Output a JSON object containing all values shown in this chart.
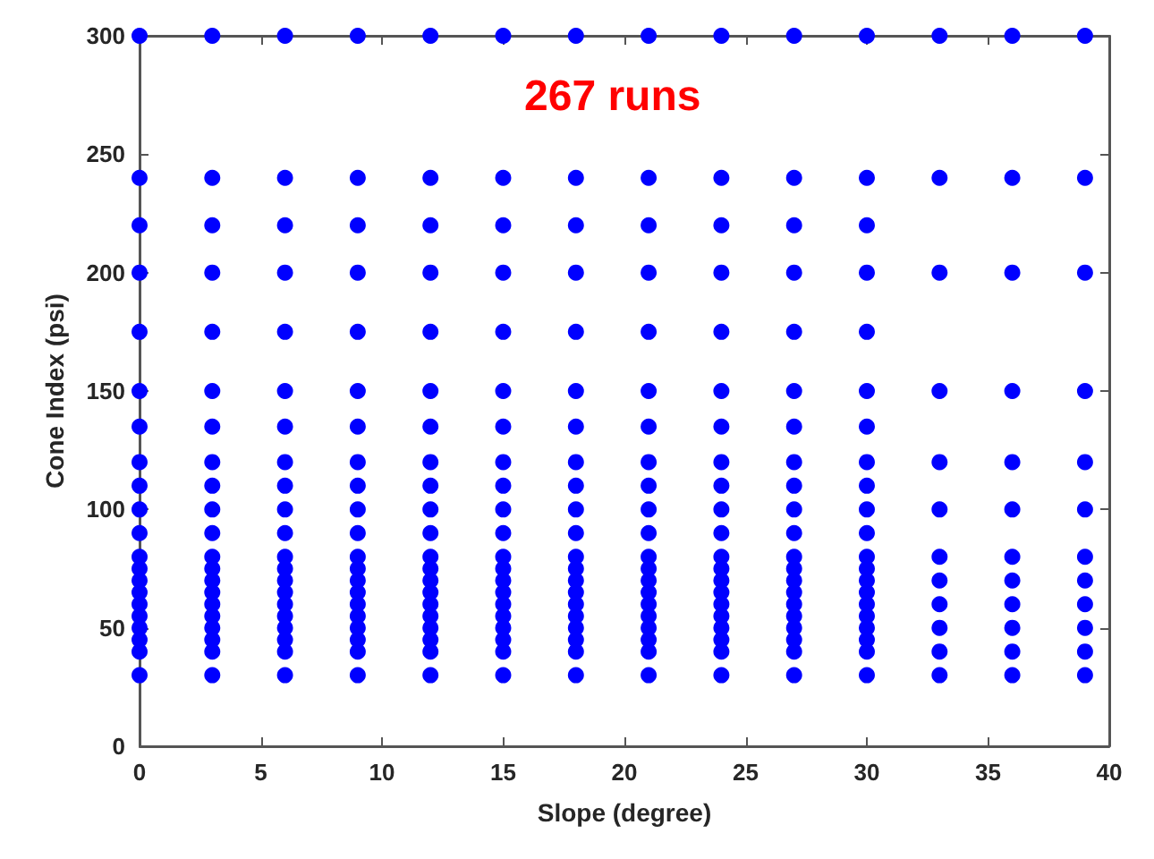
{
  "chart_data": {
    "type": "scatter",
    "xlabel": "Slope (degree)",
    "ylabel": "Cone Index (psi)",
    "annotations": [
      "267 runs"
    ],
    "xlim": [
      0,
      40
    ],
    "xticks": [
      0,
      5,
      10,
      15,
      20,
      25,
      30,
      35,
      40
    ],
    "ylim": [
      0,
      300
    ],
    "yticks": [
      0,
      50,
      100,
      150,
      200,
      250,
      300
    ],
    "marker": "circle",
    "series": [
      {
        "color": "#0000ff",
        "x": [
          0,
          0,
          0,
          0,
          0,
          0,
          0,
          0,
          0,
          0,
          0,
          0,
          0,
          0,
          0,
          0,
          0,
          0,
          0,
          0,
          0,
          3,
          3,
          3,
          3,
          3,
          3,
          3,
          3,
          3,
          3,
          3,
          3,
          3,
          3,
          3,
          3,
          3,
          3,
          3,
          3,
          3,
          6,
          6,
          6,
          6,
          6,
          6,
          6,
          6,
          6,
          6,
          6,
          6,
          6,
          6,
          6,
          6,
          6,
          6,
          6,
          6,
          6,
          9,
          9,
          9,
          9,
          9,
          9,
          9,
          9,
          9,
          9,
          9,
          9,
          9,
          9,
          9,
          9,
          9,
          9,
          9,
          9,
          9,
          12,
          12,
          12,
          12,
          12,
          12,
          12,
          12,
          12,
          12,
          12,
          12,
          12,
          12,
          12,
          12,
          12,
          12,
          12,
          12,
          12,
          15,
          15,
          15,
          15,
          15,
          15,
          15,
          15,
          15,
          15,
          15,
          15,
          15,
          15,
          15,
          15,
          15,
          15,
          15,
          15,
          15,
          18,
          18,
          18,
          18,
          18,
          18,
          18,
          18,
          18,
          18,
          18,
          18,
          18,
          18,
          18,
          18,
          18,
          18,
          18,
          18,
          18,
          21,
          21,
          21,
          21,
          21,
          21,
          21,
          21,
          21,
          21,
          21,
          21,
          21,
          21,
          21,
          21,
          21,
          21,
          21,
          21,
          21,
          24,
          24,
          24,
          24,
          24,
          24,
          24,
          24,
          24,
          24,
          24,
          24,
          24,
          24,
          24,
          24,
          24,
          24,
          24,
          24,
          24,
          27,
          27,
          27,
          27,
          27,
          27,
          27,
          27,
          27,
          27,
          27,
          27,
          27,
          27,
          27,
          27,
          27,
          27,
          27,
          27,
          27,
          30,
          30,
          30,
          30,
          30,
          30,
          30,
          30,
          30,
          30,
          30,
          30,
          30,
          30,
          30,
          30,
          30,
          30,
          30,
          30,
          30,
          33,
          33,
          33,
          33,
          33,
          33,
          33,
          33,
          33,
          33,
          33,
          33,
          36,
          36,
          36,
          36,
          36,
          36,
          36,
          36,
          36,
          36,
          36,
          36,
          39,
          39,
          39,
          39,
          39,
          39,
          39,
          39,
          39,
          39,
          39,
          39
        ],
        "values": [
          30,
          40,
          45,
          50,
          55,
          60,
          65,
          70,
          75,
          80,
          90,
          100,
          110,
          120,
          135,
          150,
          175,
          200,
          220,
          240,
          300,
          30,
          40,
          45,
          50,
          55,
          60,
          65,
          70,
          75,
          80,
          90,
          100,
          110,
          120,
          135,
          150,
          175,
          200,
          220,
          240,
          300,
          30,
          40,
          45,
          50,
          55,
          60,
          65,
          70,
          75,
          80,
          90,
          100,
          110,
          120,
          135,
          150,
          175,
          200,
          220,
          240,
          300,
          30,
          40,
          45,
          50,
          55,
          60,
          65,
          70,
          75,
          80,
          90,
          100,
          110,
          120,
          135,
          150,
          175,
          200,
          220,
          240,
          300,
          30,
          40,
          45,
          50,
          55,
          60,
          65,
          70,
          75,
          80,
          90,
          100,
          110,
          120,
          135,
          150,
          175,
          200,
          220,
          240,
          300,
          30,
          40,
          45,
          50,
          55,
          60,
          65,
          70,
          75,
          80,
          90,
          100,
          110,
          120,
          135,
          150,
          175,
          200,
          220,
          240,
          300,
          30,
          40,
          45,
          50,
          55,
          60,
          65,
          70,
          75,
          80,
          90,
          100,
          110,
          120,
          135,
          150,
          175,
          200,
          220,
          240,
          300,
          30,
          40,
          45,
          50,
          55,
          60,
          65,
          70,
          75,
          80,
          90,
          100,
          110,
          120,
          135,
          150,
          175,
          200,
          220,
          240,
          300,
          30,
          40,
          45,
          50,
          55,
          60,
          65,
          70,
          75,
          80,
          90,
          100,
          110,
          120,
          135,
          150,
          175,
          200,
          220,
          240,
          300,
          30,
          40,
          45,
          50,
          55,
          60,
          65,
          70,
          75,
          80,
          90,
          100,
          110,
          120,
          135,
          150,
          175,
          200,
          220,
          240,
          300,
          30,
          40,
          45,
          50,
          55,
          60,
          65,
          70,
          75,
          80,
          90,
          100,
          110,
          120,
          135,
          150,
          175,
          200,
          220,
          240,
          300,
          30,
          40,
          50,
          60,
          70,
          80,
          100,
          120,
          150,
          200,
          240,
          300,
          30,
          40,
          50,
          60,
          70,
          80,
          100,
          120,
          150,
          200,
          240,
          300,
          30,
          40,
          50,
          60,
          70,
          80,
          100,
          120,
          150,
          200,
          240,
          300
        ]
      }
    ]
  }
}
